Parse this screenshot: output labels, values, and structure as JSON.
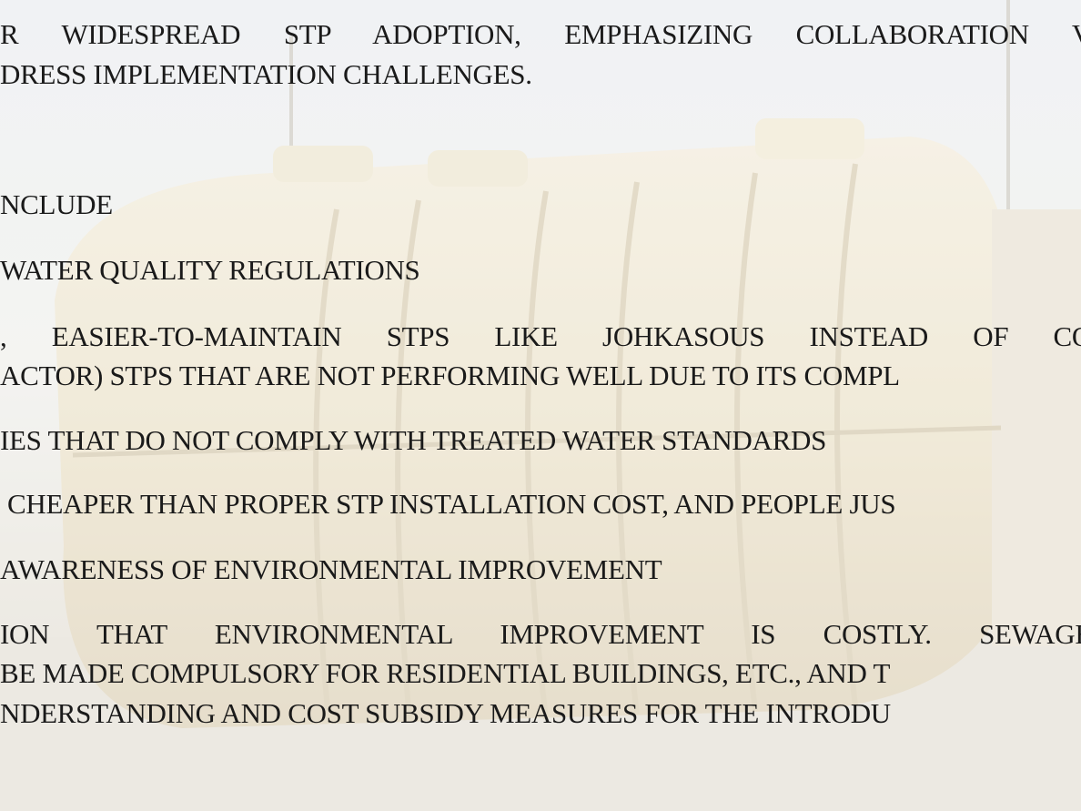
{
  "text_lines": [
    "R WIDESPREAD STP ADOPTION, EMPHASIZING COLLABORATION V",
    "DRESS IMPLEMENTATION CHALLENGES.",
    "NCLUDE",
    "WATER QUALITY REGULATIONS",
    ", EASIER-TO-MAINTAIN STPS LIKE JOHKASOUS INSTEAD OF CO",
    "ACTOR) STPS THAT ARE NOT PERFORMING WELL DUE TO ITS COMPL",
    "IES THAT DO NOT COMPLY WITH TREATED WATER STANDARDS",
    "CHEAPER THAN PROPER STP INSTALLATION COST, AND PEOPLE JUS",
    "AWARENESS OF ENVIRONMENTAL IMPROVEMENT",
    "ION THAT ENVIRONMENTAL IMPROVEMENT IS COSTLY. SEWAGE",
    "BE MADE COMPULSORY FOR RESIDENTIAL BUILDINGS, ETC., AND T",
    "NDERSTANDING AND COST SUBSIDY MEASURES FOR THE INTRODU"
  ]
}
